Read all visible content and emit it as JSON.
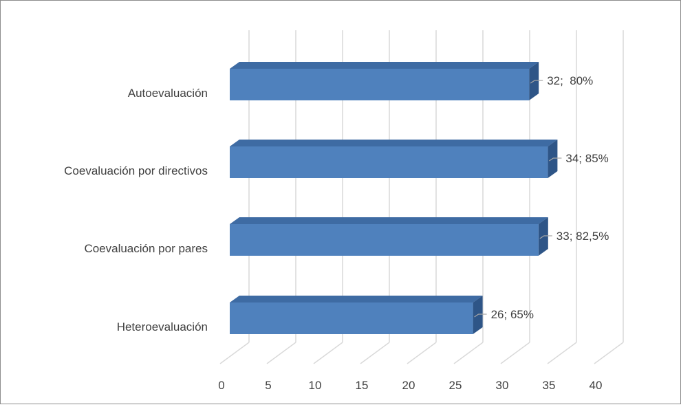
{
  "chart_data": {
    "type": "bar",
    "orientation": "horizontal",
    "style": "3d",
    "title": "",
    "xlabel": "",
    "ylabel": "",
    "categories": [
      "Autoevaluación",
      "Coevaluación por directivos",
      "Coevaluación por pares",
      "Heteroevaluación"
    ],
    "values": [
      32,
      34,
      33,
      26
    ],
    "data_labels": [
      "32;  80%",
      "34; 85%",
      "33; 82,5%",
      "26; 65%"
    ],
    "xlim": [
      0,
      40
    ],
    "x_ticks": [
      "0",
      "5",
      "10",
      "15",
      "20",
      "25",
      "30",
      "35",
      "40"
    ],
    "grid": true,
    "legend": "none",
    "colors": {
      "bar_front": "#4F81BD",
      "bar_top": "#3E6BA3",
      "bar_side": "#2E5587",
      "grid": "#D9D9D9",
      "text": "#404040"
    }
  }
}
